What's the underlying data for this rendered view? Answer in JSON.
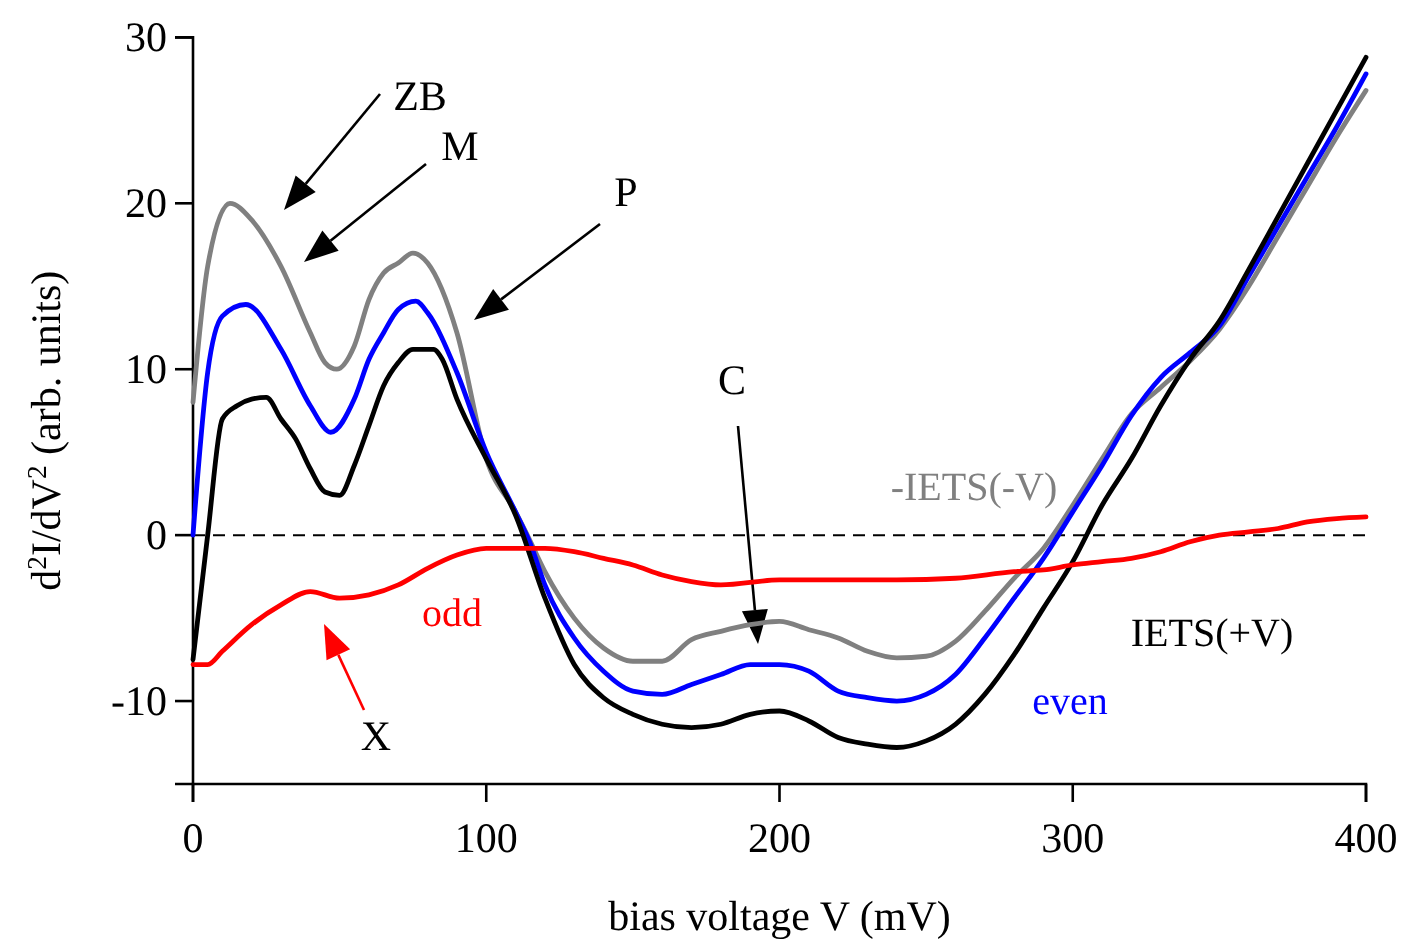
{
  "chart_data": {
    "type": "line",
    "xlabel": "bias voltage V (mV)",
    "ylabel": "d$^{2}$I/dV$^{2}$ (arb. units)",
    "xlim": [
      0,
      400
    ],
    "xticks": [
      0,
      100,
      200,
      300,
      400
    ],
    "ylim": [
      -15,
      30
    ],
    "yticks": [
      -10,
      0,
      10,
      20,
      30
    ],
    "grid": false,
    "line_style": "solid",
    "marker": "none",
    "ref_lines": [
      {
        "axis": "y",
        "value": 0,
        "color": "#000000",
        "line_style": "dashed"
      }
    ],
    "annotations": [
      "ZB",
      "M",
      "P",
      "C",
      "X"
    ],
    "series": [
      {
        "name": "-IETS(-V)",
        "color": "#808080",
        "x": [
          0,
          5,
          12.6,
          20,
          30,
          40,
          45,
          49,
          55,
          60,
          65,
          70,
          75,
          80,
          90,
          100,
          110,
          114,
          120,
          130,
          140,
          150,
          160,
          170,
          180,
          190,
          200,
          210,
          220,
          230,
          240,
          250,
          260,
          270,
          280,
          290,
          300,
          310,
          320,
          330,
          340,
          350,
          360,
          370,
          380,
          390,
          400
        ],
        "values": [
          8,
          16.2,
          20,
          19,
          16.2,
          12.2,
          10.4,
          10,
          11.4,
          14.2,
          15.8,
          16.4,
          17,
          16.4,
          12.2,
          4.6,
          1.4,
          0,
          -2.2,
          -5,
          -6.8,
          -7.6,
          -7.6,
          -6.3,
          -5.8,
          -5.4,
          -5.2,
          -5.7,
          -6.2,
          -7,
          -7.4,
          -7.3,
          -6.4,
          -4.6,
          -2.6,
          -0.8,
          1.8,
          4.6,
          7.3,
          8.9,
          10.5,
          12.4,
          15,
          18,
          21,
          24,
          26.8
        ]
      },
      {
        "name": "even",
        "color": "#0000ff",
        "x": [
          0,
          5,
          10,
          18,
          30,
          40,
          47,
          55,
          60,
          65,
          70,
          76,
          80,
          90,
          100,
          110,
          115,
          120,
          130,
          140,
          150,
          160,
          170,
          180,
          190,
          200,
          210,
          220,
          230,
          240,
          250,
          260,
          270,
          280,
          290,
          300,
          310,
          320,
          330,
          340,
          350,
          360,
          370,
          380,
          390,
          400
        ],
        "values": [
          0,
          9.8,
          13.2,
          13.9,
          11.2,
          7.8,
          6.2,
          8.2,
          10.6,
          12.2,
          13.6,
          14.1,
          13.4,
          9.8,
          5,
          1.4,
          -0.5,
          -3,
          -6.2,
          -8.2,
          -9.4,
          -9.6,
          -9,
          -8.4,
          -7.8,
          -7.8,
          -8.2,
          -9.4,
          -9.8,
          -10,
          -9.6,
          -8.4,
          -6.2,
          -3.8,
          -1.4,
          1.4,
          4.2,
          7.2,
          9.5,
          11,
          12.6,
          15.6,
          18.6,
          21.6,
          24.6,
          27.8
        ]
      },
      {
        "name": "IETS(+V)",
        "color": "#000000",
        "x": [
          0,
          5,
          10,
          15,
          20,
          25,
          30,
          35,
          40,
          45,
          50,
          55,
          60,
          65,
          70,
          75,
          82,
          85,
          90,
          100,
          110,
          120,
          130,
          140,
          150,
          160,
          170,
          180,
          190,
          200,
          210,
          220,
          230,
          240,
          250,
          260,
          270,
          280,
          290,
          300,
          310,
          320,
          330,
          340,
          350,
          360,
          370,
          380,
          390,
          400
        ],
        "values": [
          -7.5,
          0,
          7,
          7.8,
          8.2,
          8.3,
          7,
          5.8,
          4,
          2.6,
          2.4,
          4.2,
          6.6,
          9,
          10.4,
          11.2,
          11.2,
          10.6,
          8.2,
          4.6,
          1.2,
          -3.8,
          -7.8,
          -9.8,
          -10.8,
          -11.4,
          -11.6,
          -11.4,
          -10.8,
          -10.6,
          -11.2,
          -12.2,
          -12.6,
          -12.8,
          -12.4,
          -11.4,
          -9.6,
          -7.2,
          -4.4,
          -1.6,
          1.8,
          4.6,
          7.8,
          10.6,
          12.9,
          16,
          19.2,
          22.4,
          25.6,
          28.8
        ]
      },
      {
        "name": "odd",
        "color": "#ff0000",
        "x": [
          0,
          5,
          10,
          20,
          30,
          40,
          50,
          60,
          70,
          80,
          90,
          100,
          110,
          120,
          130,
          140,
          150,
          160,
          170,
          180,
          200,
          220,
          240,
          260,
          280,
          290,
          300,
          310,
          320,
          330,
          340,
          350,
          360,
          370,
          380,
          390,
          400
        ],
        "values": [
          -7.8,
          -7.8,
          -7,
          -5.4,
          -4.2,
          -3.4,
          -3.8,
          -3.6,
          -3,
          -2,
          -1.2,
          -0.8,
          -0.8,
          -0.8,
          -1,
          -1.4,
          -1.8,
          -2.4,
          -2.8,
          -3,
          -2.7,
          -2.7,
          -2.7,
          -2.6,
          -2.2,
          -2.1,
          -1.8,
          -1.6,
          -1.4,
          -1,
          -0.4,
          0,
          0.2,
          0.4,
          0.8,
          1,
          1.1
        ]
      }
    ]
  }
}
